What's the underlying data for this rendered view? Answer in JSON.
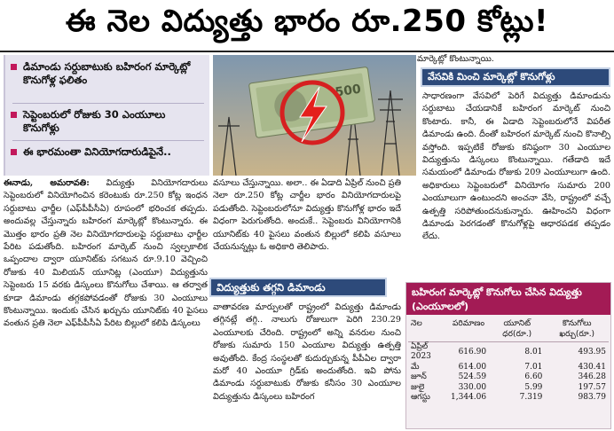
{
  "headline": "ఈ నెల విద్యుత్తు భారం రూ.250 కోట్లు!",
  "bullets": [
    "డిమాండు సర్దుబాటుకు బహిరంగ మార్కెట్లో కొనుగోళ్ల ఫలితం",
    "సెప్టెంబరులో రోజుకు 30 ఎంయూలు కొనుగోళ్లు",
    "ఈ భారమంతా వినియోగదారుడిపైనే.."
  ],
  "left_col": {
    "dateline": "ఈనాడు, అమరావతి:",
    "text": " విద్యుత్తు వినియోగదారులు సెప్టెంబరులో వినియోగించిన కరెంటుకు రూ.250 కోట్ల ఇంధన సర్దుబాటు ఛార్జీల (ఎఫ్‌పీపీసీఏ) రూపంలో భరించక తప్పదు. అందువల్ల చేస్తున్నారు బహిరంగ మార్కెట్లో కొంటున్నారు. ఈ మొత్తం భారం ప్రతి నెల వినియోగదారులపై సర్దుబాటు ఛార్జీల పేరిట పడుతోంది. బహిరంగ మార్కెట్ నుంచి స్వల్పకాలిక ఒప్పందాల ద్వారా యూనిట్‌కు సగటున రూ.9.10 వెచ్చించి రోజుకు 40 మిలియన్ యూనిట్ల (ఎంయూ) విద్యుత్తును సెప్టెంబరు 15 వరకు డిస్కంలు కొనుగోలు చేశాయి. ఆ తర్వాత కూడా డిమాండు తగ్గకపోవడంతో రోజుకు 30 ఎంయూలు కొంటున్నాయి. ఇందుకు చేసిన ఖర్చును యూనిట్‌కు 40 పైసలు వంతున ప్రతి నెలా ఎఫ్‌పీపీసీఏ పేరిట బిల్లులో కలిపి డిస్కంలు"
  },
  "mid_col": {
    "text": "వసూలు చేస్తున్నాయి. అలా.. ఈ ఏడాది ఏప్రిల్ నుంచి ప్రతి నెలా రూ.250 కోట్ల చార్జీల భారం వినియోగదారులపై పడుతోంది. సెప్టెంబరులోనూ విద్యుత్తు కొనుగోళ్ల భారం ఇదే విధంగా పెరుగుతోంది. అందుకే.. సెప్టెంబరు వినియోగానికి యూనిట్‌కు 40 పైసలు వంతున బిల్లులో కలిపి వసూలు చేయనున్నట్లు ఓ అధికారి తెలిపారు."
  },
  "mid_section": {
    "heading": "విద్యుత్తుకు తగ్గని డిమాండు",
    "text": "వాతావరణ మార్పులతో రాష్ట్రంలో విద్యుత్తు డిమాండు తగ్గినట్లే తగ్గి.. నాలుగు రోజులుగా పెరిగి 230.29 ఎంయూలకు చేరింది. రాష్ట్రంలో అన్ని వనరుల నుంచి రోజుకు సుమారు 150 ఎంయూల విద్యుత్తు ఉత్పత్తి అవుతోంది. కేంద్ర సంస్థలతో కుదుర్చుకున్న పీపీఏల ద్వారా మరో 40 ఎంయూ గ్రిడ్‌కు అందుతోంది. ఇవి పోను డిమాండు సర్దుబాటుకు రోజుకు కనీసం 30 ఎంయూల విద్యుత్తును డిస్కంలు బహిరంగ"
  },
  "right_col": {
    "top_line": "మార్కెట్లో కొంటున్నాయి.",
    "heading": "వేసవికి మించి మార్కెట్లో కొనుగోళ్లు",
    "text": "సాధారణంగా వేసవిలో పెరిగే విద్యుత్తు డిమాండును సర్దుబాటు చేయడానికే బహిరంగ మార్కెట్ నుంచి కొంటారు. కానీ, ఈ ఏడాది సెప్టెంబరులోనే విపరీత డిమాండు ఉంది. దీంతో బహిరంగ మార్కెట్ నుంచి కొనాల్సి వస్తోంది. ఇప్పటికే రోజుకు కనిష్ఠంగా 30 ఎంయూల విద్యుత్తును డిస్కంలు కొంటున్నాయి. గతేడాది ఇదే సమయంలో డిమాండు రోజుకు 209 ఎంయూలుగా ఉంది. అధికారులు సెప్టెంబరులో వినియోగం సుమారు 200 ఎంయూలుగా ఉంటుందని అంచనా వేసి, రాష్ట్రంలో వచ్చే ఉత్పత్తి సరిపోతుందనుకున్నారు. ఊహించని విధంగా డిమాండు పెరగడంతో కొనుగోళ్లపై ఆధారపడక తప్పడం లేదు."
  },
  "table": {
    "title": "బహిరంగ మార్కెట్లో కొనుగోలు చేసిన విద్యుత్తు (ఎంయూలలో)",
    "headers": [
      "నెల",
      "పరిమాణం",
      "యూనిట్ ధర(రూ.)",
      "కొనుగోలు ఖర్చు(రూ.)"
    ],
    "rows": [
      [
        "ఏప్రిల్ 2023",
        "616.90",
        "8.01",
        "493.95"
      ],
      [
        "మే",
        "614.00",
        "7.01",
        "430.41"
      ],
      [
        "జూన్",
        "524.59",
        "6.60",
        "346.28"
      ],
      [
        "జులై",
        "330.00",
        "5.99",
        "197.57"
      ],
      [
        "ఆగస్టు",
        "1,344.06",
        "7.319",
        "983.79"
      ]
    ]
  },
  "colors": {
    "bullet_bg": "#e6e4ef",
    "bullet_mark": "#c2185b",
    "section_bg": "#2d4a7a",
    "table_header": "#a31b55"
  }
}
